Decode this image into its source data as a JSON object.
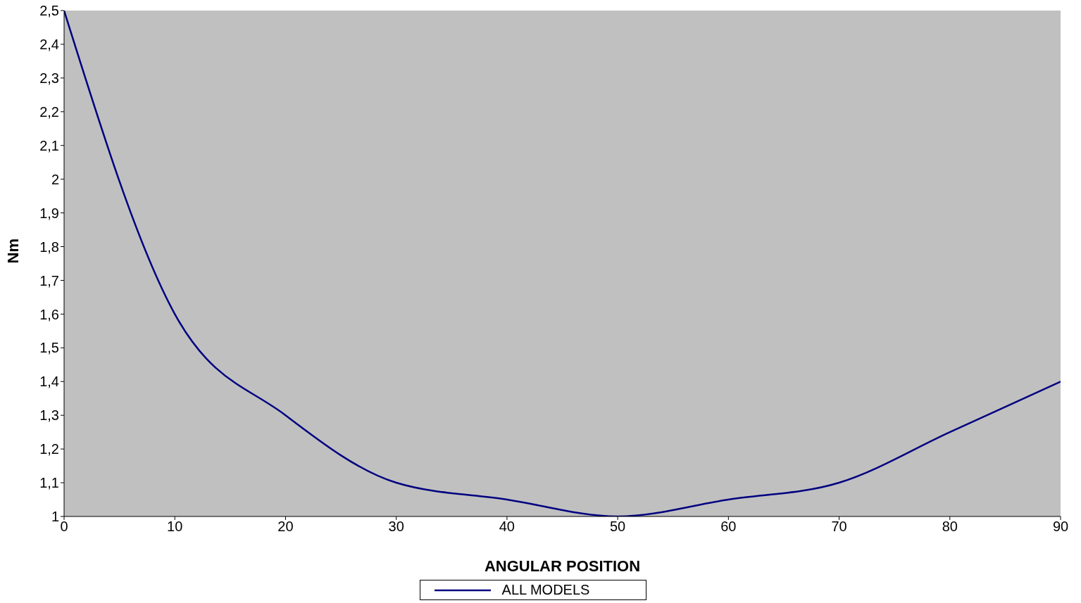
{
  "chart_data": {
    "type": "line",
    "xlabel": "ANGULAR POSITION",
    "ylabel": "Nm",
    "x": [
      0,
      10,
      20,
      30,
      40,
      50,
      60,
      70,
      80,
      90
    ],
    "series": [
      {
        "name": "ALL MODELS",
        "color": "#000080",
        "values": [
          2.5,
          1.6,
          1.3,
          1.1,
          1.05,
          1.0,
          1.05,
          1.1,
          1.25,
          1.4
        ]
      }
    ],
    "xlim": [
      0,
      90
    ],
    "xticks": [
      0,
      10,
      20,
      30,
      40,
      50,
      60,
      70,
      80,
      90
    ],
    "ylim": [
      1,
      2.5
    ],
    "yticks": [
      {
        "value": 1,
        "label": "1"
      },
      {
        "value": 1.1,
        "label": "1,1"
      },
      {
        "value": 1.2,
        "label": "1,2"
      },
      {
        "value": 1.3,
        "label": "1,3"
      },
      {
        "value": 1.4,
        "label": "1,4"
      },
      {
        "value": 1.5,
        "label": "1,5"
      },
      {
        "value": 1.6,
        "label": "1,6"
      },
      {
        "value": 1.7,
        "label": "1,7"
      },
      {
        "value": 1.8,
        "label": "1,8"
      },
      {
        "value": 1.9,
        "label": "1,9"
      },
      {
        "value": 2,
        "label": "2"
      },
      {
        "value": 2.1,
        "label": "2,1"
      },
      {
        "value": 2.2,
        "label": "2,2"
      },
      {
        "value": 2.3,
        "label": "2,3"
      },
      {
        "value": 2.4,
        "label": "2,4"
      },
      {
        "value": 2.5,
        "label": "2,5"
      }
    ],
    "legend": "bottom",
    "marker": "none",
    "line_style": "solid"
  }
}
